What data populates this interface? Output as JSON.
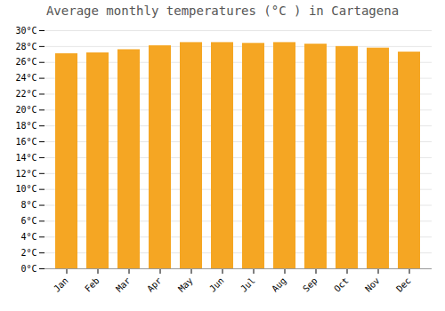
{
  "chart_data": {
    "type": "bar",
    "title": "Average monthly temperatures (°C ) in Cartagena",
    "categories": [
      "Jan",
      "Feb",
      "Mar",
      "Apr",
      "May",
      "Jun",
      "Jul",
      "Aug",
      "Sep",
      "Oct",
      "Nov",
      "Dec"
    ],
    "values": [
      27.1,
      27.2,
      27.6,
      28.1,
      28.5,
      28.5,
      28.4,
      28.5,
      28.3,
      28.0,
      27.8,
      27.3
    ],
    "color": "#F5A623",
    "ylim": [
      0,
      30
    ],
    "yticks": [
      {
        "value": 0,
        "label": "0°C"
      },
      {
        "value": 2,
        "label": "2°C"
      },
      {
        "value": 4,
        "label": "4°C"
      },
      {
        "value": 6,
        "label": "6°C"
      },
      {
        "value": 8,
        "label": "8°C"
      },
      {
        "value": 10,
        "label": "10°C"
      },
      {
        "value": 12,
        "label": "12°C"
      },
      {
        "value": 14,
        "label": "14°C"
      },
      {
        "value": 16,
        "label": "16°C"
      },
      {
        "value": 18,
        "label": "18°C"
      },
      {
        "value": 20,
        "label": "20°C"
      },
      {
        "value": 22,
        "label": "22°C"
      },
      {
        "value": 24,
        "label": "24°C"
      },
      {
        "value": 26,
        "label": "26°C"
      },
      {
        "value": 28,
        "label": "28°C"
      },
      {
        "value": 30,
        "label": "30°C"
      }
    ],
    "grid": true
  }
}
